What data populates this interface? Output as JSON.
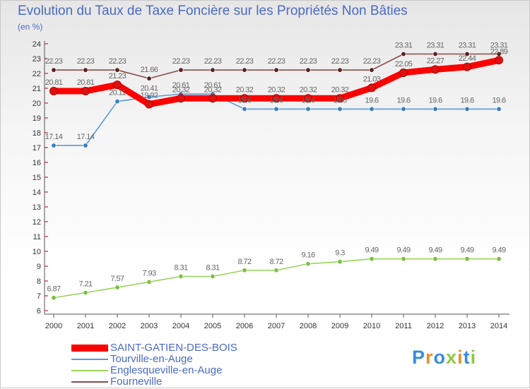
{
  "header": {
    "title": "Evolution du Taux de Taxe Foncière sur les Propriétés Non Bâties",
    "subtitle": "(en %)"
  },
  "logo": {
    "text": "Proxiti"
  },
  "chart_data": {
    "type": "line",
    "title": "Evolution du Taux de Taxe Foncière sur les Propriétés Non Bâties",
    "ylabel": "(en %)",
    "xlabel": "",
    "x": [
      "2000",
      "2001",
      "2002",
      "2003",
      "2004",
      "2005",
      "2006",
      "2007",
      "2008",
      "2009",
      "2010",
      "2011",
      "2012",
      "2013",
      "2014"
    ],
    "ylim": [
      6,
      24
    ],
    "yticks": [
      "6",
      "7",
      "8",
      "9",
      "10",
      "11",
      "12",
      "13",
      "14",
      "15",
      "16",
      "17",
      "18",
      "19",
      "20",
      "21",
      "22",
      "23",
      "24"
    ],
    "grid": false,
    "legend_position": "bottom",
    "series": [
      {
        "name": "SAINT-GATIEN-DES-BOIS",
        "color": "#ff0000",
        "marker": "#e01010",
        "values": [
          20.81,
          20.81,
          21.23,
          19.92,
          20.32,
          20.32,
          20.32,
          20.32,
          20.32,
          20.32,
          21.03,
          22.05,
          22.27,
          22.44,
          22.89
        ],
        "labels": [
          "20.81",
          "20.81",
          "21.23",
          "19.92",
          "20.32",
          "20.32",
          "20.32",
          "20.32",
          "20.32",
          "20.32",
          "21.03",
          "22.05",
          "22.27",
          "22.44",
          "22.89"
        ]
      },
      {
        "name": "Tourville-en-Auge",
        "color": "#5b9bd5",
        "marker": "#3a7cc0",
        "values": [
          17.14,
          17.14,
          20.11,
          20.41,
          20.61,
          20.61,
          19.6,
          19.6,
          19.6,
          19.6,
          19.6,
          19.6,
          19.6,
          19.6,
          19.6
        ],
        "labels": [
          "17.14",
          "17.14",
          "20.11",
          "20.41",
          "20.61",
          "20.61",
          "19.6",
          "19.6",
          "19.6",
          "19.6",
          "19.6",
          "19.6",
          "19.6",
          "19.6",
          "19.6"
        ]
      },
      {
        "name": "Englesqueville-en-Auge",
        "color": "#9ad35a",
        "marker": "#7cc040",
        "values": [
          6.87,
          7.21,
          7.57,
          7.93,
          8.31,
          8.31,
          8.72,
          8.72,
          9.16,
          9.3,
          9.49,
          9.49,
          9.49,
          9.49,
          9.49
        ],
        "labels": [
          "6.87",
          "7.21",
          "7.57",
          "7.93",
          "8.31",
          "8.31",
          "8.72",
          "8.72",
          "9.16",
          "9.3",
          "9.49",
          "9.49",
          "9.49",
          "9.49",
          "9.49"
        ]
      },
      {
        "name": "Fourneville",
        "color": "#8b4a4a",
        "marker": "#5a1d1d",
        "values": [
          22.23,
          22.23,
          22.23,
          21.66,
          22.23,
          22.23,
          22.23,
          22.23,
          22.23,
          22.23,
          22.23,
          23.31,
          23.31,
          23.31,
          23.31
        ],
        "labels": [
          "22.23",
          "22.23",
          "22.23",
          "21.66",
          "22.23",
          "22.23",
          "22.23",
          "22.23",
          "22.23",
          "22.23",
          "22.23",
          "23.31",
          "23.31",
          "23.31",
          "23.31"
        ]
      }
    ]
  }
}
